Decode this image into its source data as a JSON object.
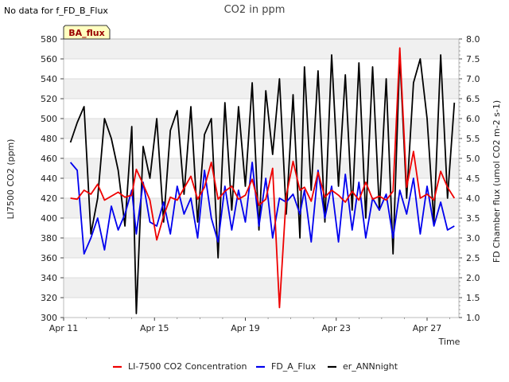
{
  "status_text": "No data for f_FD_B_Flux",
  "badge_label": "BA_flux",
  "colors": {
    "co2": "#ee0000",
    "fd_a": "#0000ee",
    "er": "#000000",
    "badge_bg": "#ffffc0",
    "badge_text": "#990000"
  },
  "chart_data": {
    "type": "line",
    "title": "CO2 in ppm",
    "xlabel": "Time",
    "ylabel": "LI7500 CO2 (ppm)",
    "y2label": "FD Chamber flux (umol CO2 m-2 s-1)",
    "xlim": [
      0,
      17.4
    ],
    "x_ticks": [
      {
        "value": 0,
        "label": "Apr 11"
      },
      {
        "value": 4,
        "label": "Apr 15"
      },
      {
        "value": 8,
        "label": "Apr 19"
      },
      {
        "value": 12,
        "label": "Apr 23"
      },
      {
        "value": 16,
        "label": "Apr 27"
      }
    ],
    "ylim": [
      300,
      580
    ],
    "y_ticks": [
      300,
      320,
      340,
      360,
      380,
      400,
      420,
      440,
      460,
      480,
      500,
      520,
      540,
      560,
      580
    ],
    "y2lim": [
      1.0,
      8.0
    ],
    "y2_ticks": [
      "1.0",
      "1.5",
      "2.0",
      "2.5",
      "3.0",
      "3.5",
      "4.0",
      "4.5",
      "5.0",
      "5.5",
      "6.0",
      "6.5",
      "7.0",
      "7.5",
      "8.0"
    ],
    "grid": "horizontal bands",
    "legend_position": "bottom",
    "series": [
      {
        "name": "LI-7500 CO2 Concentration",
        "axis": "left",
        "x": [
          0.3,
          0.6,
          0.9,
          1.2,
          1.5,
          1.8,
          2.1,
          2.4,
          2.7,
          3.0,
          3.2,
          3.5,
          3.8,
          4.1,
          4.4,
          4.7,
          5.0,
          5.3,
          5.6,
          5.9,
          6.2,
          6.5,
          6.8,
          7.1,
          7.4,
          7.7,
          8.0,
          8.3,
          8.6,
          8.9,
          9.2,
          9.5,
          9.8,
          10.1,
          10.4,
          10.6,
          10.9,
          11.2,
          11.5,
          11.8,
          12.1,
          12.4,
          12.7,
          13.0,
          13.3,
          13.6,
          13.9,
          14.2,
          14.5,
          14.8,
          15.1,
          15.4,
          15.7,
          16.0,
          16.3,
          16.6,
          16.9,
          17.2
        ],
        "values": [
          420,
          419,
          428,
          424,
          434,
          418,
          422,
          426,
          421,
          423,
          449,
          434,
          418,
          378,
          402,
          421,
          418,
          430,
          442,
          419,
          431,
          456,
          419,
          427,
          432,
          419,
          423,
          439,
          413,
          419,
          450,
          310,
          422,
          457,
          428,
          431,
          417,
          446,
          421,
          428,
          423,
          416,
          427,
          418,
          436,
          419,
          422,
          418,
          427,
          571,
          431,
          467,
          420,
          424,
          418,
          447,
          431,
          420
        ]
      },
      {
        "name": "FD_A_Flux",
        "axis": "right",
        "x": [
          0.3,
          0.6,
          0.9,
          1.2,
          1.5,
          1.8,
          2.1,
          2.4,
          2.7,
          3.0,
          3.2,
          3.5,
          3.8,
          4.1,
          4.4,
          4.7,
          5.0,
          5.3,
          5.6,
          5.9,
          6.2,
          6.5,
          6.8,
          7.1,
          7.4,
          7.7,
          8.0,
          8.3,
          8.6,
          8.9,
          9.2,
          9.5,
          9.8,
          10.1,
          10.4,
          10.6,
          10.9,
          11.2,
          11.5,
          11.8,
          12.1,
          12.4,
          12.7,
          13.0,
          13.3,
          13.6,
          13.9,
          14.2,
          14.5,
          14.8,
          15.1,
          15.4,
          15.7,
          16.0,
          16.3,
          16.6,
          16.9,
          17.2
        ],
        "values": [
          4.9,
          4.7,
          2.6,
          3.0,
          3.5,
          2.7,
          3.8,
          3.2,
          3.6,
          4.2,
          3.1,
          4.4,
          3.4,
          3.3,
          3.9,
          3.1,
          4.3,
          3.6,
          4.0,
          3.0,
          4.7,
          3.5,
          2.9,
          4.3,
          3.2,
          4.2,
          3.4,
          4.9,
          3.3,
          4.5,
          3.0,
          4.0,
          3.9,
          4.1,
          3.6,
          4.2,
          2.9,
          4.7,
          3.5,
          4.3,
          2.9,
          4.6,
          3.2,
          4.4,
          3.0,
          4.0,
          3.7,
          4.1,
          3.0,
          4.2,
          3.6,
          4.5,
          3.1,
          4.3,
          3.3,
          3.9,
          3.2,
          3.3
        ]
      },
      {
        "name": "er_ANNnight",
        "axis": "right",
        "x": [
          0.3,
          0.6,
          0.9,
          1.2,
          1.5,
          1.8,
          2.1,
          2.4,
          2.7,
          3.0,
          3.2,
          3.5,
          3.8,
          4.1,
          4.4,
          4.7,
          5.0,
          5.3,
          5.6,
          5.9,
          6.2,
          6.5,
          6.8,
          7.1,
          7.4,
          7.7,
          8.0,
          8.3,
          8.6,
          8.9,
          9.2,
          9.5,
          9.8,
          10.1,
          10.4,
          10.6,
          10.9,
          11.2,
          11.5,
          11.8,
          12.1,
          12.4,
          12.7,
          13.0,
          13.3,
          13.6,
          13.9,
          14.2,
          14.5,
          14.8,
          15.1,
          15.4,
          15.7,
          16.0,
          16.3,
          16.6,
          16.9,
          17.2
        ],
        "values": [
          5.4,
          5.9,
          6.3,
          3.1,
          4.0,
          6.0,
          5.5,
          4.7,
          3.3,
          5.8,
          1.1,
          5.3,
          4.5,
          6.0,
          3.4,
          5.7,
          6.2,
          4.1,
          6.3,
          3.4,
          5.6,
          6.0,
          2.5,
          6.4,
          3.7,
          6.3,
          4.3,
          6.9,
          3.2,
          6.7,
          5.1,
          7.0,
          3.6,
          6.6,
          3.0,
          7.3,
          4.2,
          7.2,
          3.4,
          7.6,
          4.3,
          7.1,
          3.7,
          7.4,
          3.5,
          7.3,
          3.7,
          7.0,
          2.6,
          7.6,
          4.0,
          6.9,
          7.5,
          6.0,
          3.4,
          7.6,
          4.0,
          6.4
        ]
      }
    ]
  }
}
